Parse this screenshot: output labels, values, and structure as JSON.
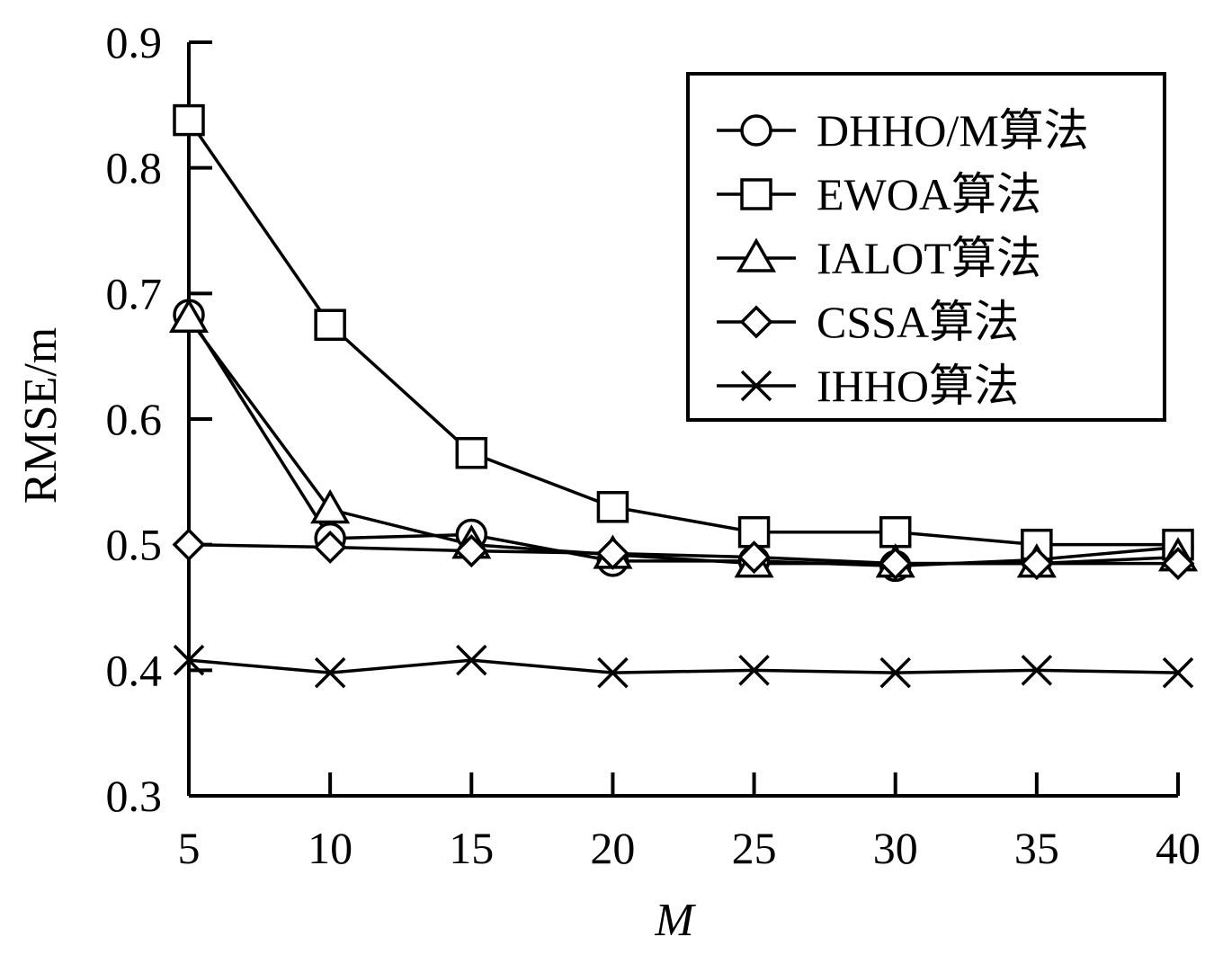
{
  "chart_data": {
    "type": "line",
    "x": [
      5,
      10,
      15,
      20,
      25,
      30,
      35,
      40
    ],
    "xlabel": "M",
    "ylabel": "RMSE/m",
    "xlim": [
      5,
      40
    ],
    "ylim": [
      0.3,
      0.9
    ],
    "xticks": [
      "5",
      "10",
      "15",
      "20",
      "25",
      "30",
      "35",
      "40"
    ],
    "yticks": [
      "0.3",
      "0.4",
      "0.5",
      "0.6",
      "0.7",
      "0.8",
      "0.9"
    ],
    "grid": false,
    "legend_position": "top-right",
    "series": [
      {
        "name": "DHHO/M算法",
        "marker": "circle",
        "values": [
          0.683,
          0.505,
          0.508,
          0.487,
          0.487,
          0.483,
          0.488,
          0.498
        ]
      },
      {
        "name": "EWOA算法",
        "marker": "square",
        "values": [
          0.838,
          0.675,
          0.573,
          0.53,
          0.51,
          0.51,
          0.5,
          0.5
        ]
      },
      {
        "name": "IALOT算法",
        "marker": "triangle",
        "values": [
          0.68,
          0.528,
          0.5,
          0.492,
          0.485,
          0.485,
          0.485,
          0.49
        ]
      },
      {
        "name": "CSSA算法",
        "marker": "diamond",
        "values": [
          0.5,
          0.498,
          0.495,
          0.493,
          0.49,
          0.485,
          0.485,
          0.485
        ]
      },
      {
        "name": "IHHO算法",
        "marker": "cross",
        "values": [
          0.408,
          0.398,
          0.408,
          0.398,
          0.4,
          0.398,
          0.4,
          0.398
        ]
      }
    ]
  }
}
